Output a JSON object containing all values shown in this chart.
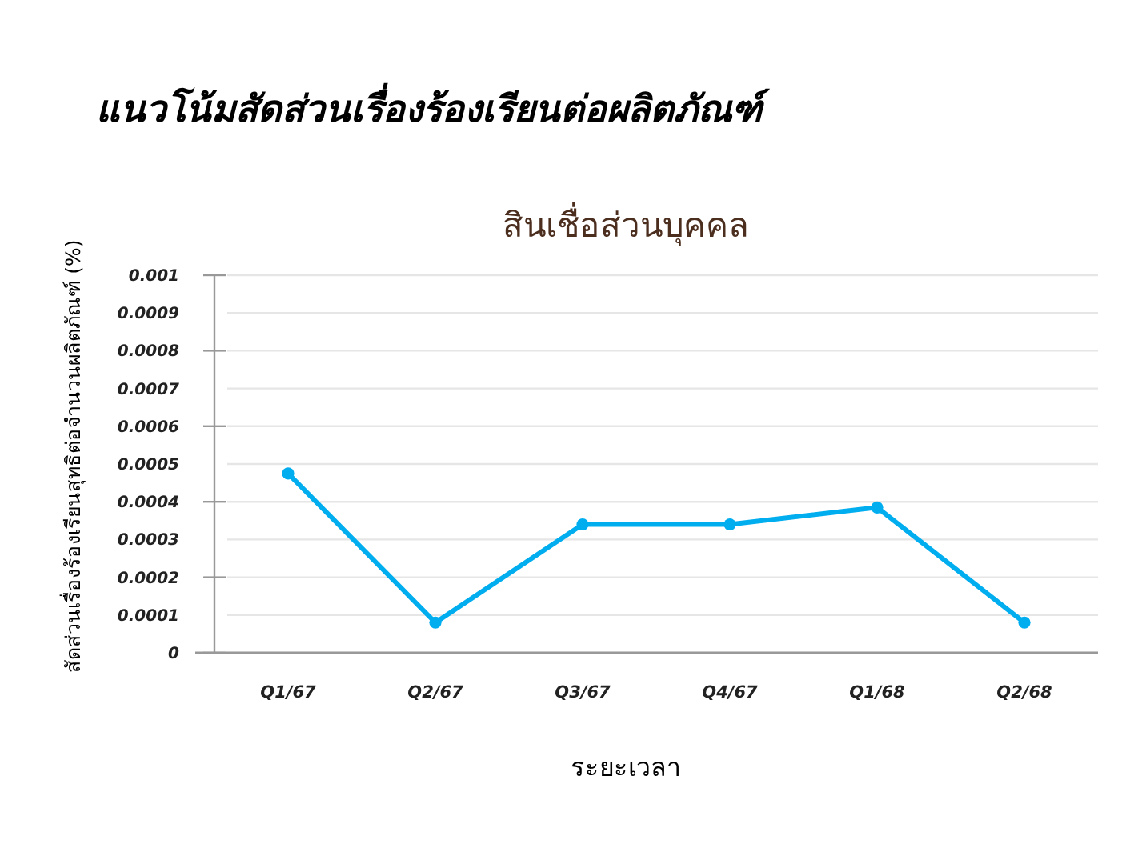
{
  "chart_data": {
    "type": "line",
    "title": "แนวโน้มสัดส่วนเรื่องร้องเรียนต่อผลิตภัณฑ์",
    "subtitle": "สินเชื่อส่วนบุคคล",
    "xlabel": "ระยะเวลา",
    "ylabel": "สัดส่วนเรื่องร้องเรียนสุทธิต่อจำนวนผลิตภัณฑ์ (%)",
    "categories": [
      "Q1/67",
      "Q2/67",
      "Q3/67",
      "Q4/67",
      "Q1/68",
      "Q2/68"
    ],
    "series": [
      {
        "color": "#00aeef",
        "values": [
          0.000475,
          8e-05,
          0.00034,
          0.00034,
          0.000385,
          8e-05
        ]
      }
    ],
    "ylim": [
      0,
      0.001
    ],
    "yticks": [
      0,
      0.0001,
      0.0002,
      0.0003,
      0.0004,
      0.0005,
      0.0006,
      0.0007,
      0.0008,
      0.0009,
      0.001
    ],
    "grid": "y",
    "marker": "circle",
    "line_style": "solid"
  }
}
